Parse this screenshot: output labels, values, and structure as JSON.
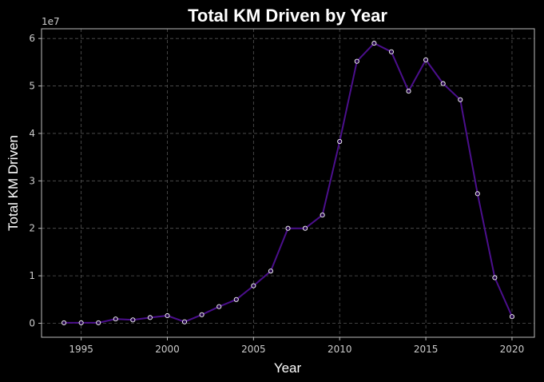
{
  "chart_data": {
    "type": "line",
    "title": "Total KM Driven by Year",
    "xlabel": "Year",
    "ylabel": "Total KM Driven",
    "y_offset_label": "1e7",
    "y_multiplier": 10000000,
    "x": [
      1994,
      1995,
      1996,
      1997,
      1998,
      1999,
      2000,
      2001,
      2002,
      2003,
      2004,
      2005,
      2006,
      2007,
      2008,
      2009,
      2010,
      2011,
      2012,
      2013,
      2014,
      2015,
      2016,
      2017,
      2018,
      2019,
      2020
    ],
    "series": [
      {
        "values": [
          100000,
          100000,
          100000,
          900000,
          700000,
          1200000,
          1600000,
          300000,
          1800000,
          3500000,
          5000000,
          7900000,
          11000000,
          20000000,
          20000000,
          22800000,
          38300000,
          55200000,
          59000000,
          57200000,
          48900000,
          55500000,
          50500000,
          47100000,
          27300000,
          9600000,
          1400000
        ]
      }
    ],
    "x_ticks": [
      1995,
      2000,
      2005,
      2010,
      2015,
      2020
    ],
    "y_ticks": [
      0,
      1,
      2,
      3,
      4,
      5,
      6
    ],
    "xlim": [
      1992.7,
      2021.3
    ],
    "ylim": [
      -2950000,
      62050000
    ],
    "grid": true,
    "colors": {
      "background": "#000000",
      "line": "#4b0f8c",
      "marker_fill": "#2a0a4f",
      "marker_edge": "#ffffff",
      "grid": "#555555",
      "spine": "#bbbbbb",
      "text": "#ffffff",
      "tick_text": "#cccccc"
    }
  }
}
